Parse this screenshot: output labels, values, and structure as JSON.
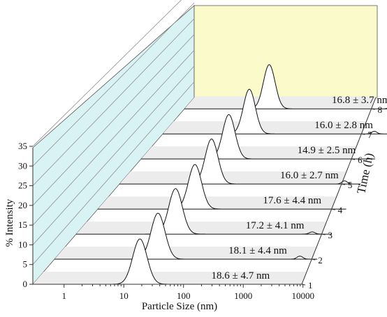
{
  "chart_data": {
    "type": "line",
    "style": "3d-waterfall",
    "xlabel": "Particle Size (nm)",
    "ylabel": "% Intensity",
    "zlabel": "Time (h)",
    "xscale": "log",
    "xlim": [
      0.3,
      10000
    ],
    "ylim": [
      0,
      35
    ],
    "zlim": [
      1,
      8
    ],
    "x_ticks": [
      1,
      10,
      100,
      1000,
      10000
    ],
    "x_tick_labels": [
      "1",
      "10",
      "100",
      "1000",
      "10000"
    ],
    "y_ticks": [
      0,
      5,
      10,
      15,
      20,
      25,
      30,
      35
    ],
    "y_tick_labels": [
      "0",
      "5",
      "10",
      "15",
      "20",
      "25",
      "30",
      "35"
    ],
    "z_ticks": [
      1,
      2,
      3,
      4,
      5,
      6,
      7,
      8
    ],
    "z_tick_labels": [
      "1",
      "2",
      "3",
      "4",
      "5",
      "6",
      "7",
      "8"
    ],
    "colors": {
      "left_wall": "#d9f2f4",
      "back_wall": "#fafacb",
      "floor_band": "#ececec",
      "peak_fill": "#ffffff",
      "line": "#111111"
    },
    "series": [
      {
        "time": 1,
        "label": "18.6 ± 4.7 nm",
        "peak_size": 18.6,
        "peak_height": 11.5,
        "shoulder_size": null,
        "shoulder_height": 0
      },
      {
        "time": 2,
        "label": "18.1 ± 4.4 nm",
        "peak_size": 18.1,
        "peak_height": 12.0,
        "shoulder_size": 5000,
        "shoulder_height": 0.8
      },
      {
        "time": 3,
        "label": "17.2 ± 4.1 nm",
        "peak_size": 17.2,
        "peak_height": 12.2,
        "shoulder_size": 4500,
        "shoulder_height": 0.6
      },
      {
        "time": 4,
        "label": "17.6 ± 4.4 nm",
        "peak_size": 17.6,
        "peak_height": 12.3,
        "shoulder_size": null,
        "shoulder_height": 0
      },
      {
        "time": 5,
        "label": "16.0 ± 2.7 nm",
        "peak_size": 16.0,
        "peak_height": 12.8,
        "shoulder_size": 5000,
        "shoulder_height": 0.9
      },
      {
        "time": 6,
        "label": "14.9 ± 2.5 nm",
        "peak_size": 14.9,
        "peak_height": 13.0,
        "shoulder_size": null,
        "shoulder_height": 0
      },
      {
        "time": 7,
        "label": "16.0 ± 2.8 nm",
        "peak_size": 16.0,
        "peak_height": 13.5,
        "shoulder_size": 5000,
        "shoulder_height": 0.8
      },
      {
        "time": 8,
        "label": "16.8 ± 3.7 nm",
        "peak_size": 16.8,
        "peak_height": 13.8,
        "shoulder_size": 5500,
        "shoulder_height": 0.9
      }
    ]
  }
}
